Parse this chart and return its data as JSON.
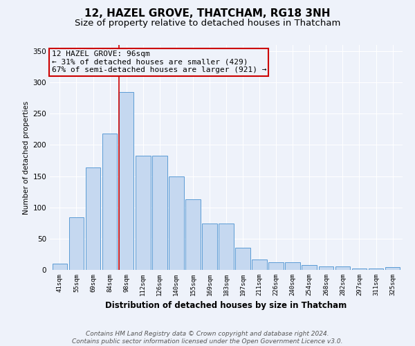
{
  "title": "12, HAZEL GROVE, THATCHAM, RG18 3NH",
  "subtitle": "Size of property relative to detached houses in Thatcham",
  "xlabel": "Distribution of detached houses by size in Thatcham",
  "ylabel": "Number of detached properties",
  "categories": [
    "41sqm",
    "55sqm",
    "69sqm",
    "84sqm",
    "98sqm",
    "112sqm",
    "126sqm",
    "140sqm",
    "155sqm",
    "169sqm",
    "183sqm",
    "197sqm",
    "211sqm",
    "226sqm",
    "240sqm",
    "254sqm",
    "268sqm",
    "282sqm",
    "297sqm",
    "311sqm",
    "325sqm"
  ],
  "values": [
    10,
    84,
    164,
    218,
    285,
    183,
    183,
    149,
    113,
    74,
    74,
    35,
    17,
    12,
    12,
    8,
    5,
    5,
    2,
    2,
    4
  ],
  "bar_color": "#c5d8f0",
  "bar_edge_color": "#5b9bd5",
  "property_line_color": "#cc0000",
  "annotation_text": "12 HAZEL GROVE: 96sqm\n← 31% of detached houses are smaller (429)\n67% of semi-detached houses are larger (921) →",
  "annotation_box_color": "#cc0000",
  "ylim": [
    0,
    360
  ],
  "yticks": [
    0,
    50,
    100,
    150,
    200,
    250,
    300,
    350
  ],
  "footer": "Contains HM Land Registry data © Crown copyright and database right 2024.\nContains public sector information licensed under the Open Government Licence v3.0.",
  "background_color": "#eef2fa",
  "grid_color": "#ffffff",
  "title_fontsize": 11,
  "subtitle_fontsize": 9.5,
  "annotation_fontsize": 8,
  "footer_fontsize": 6.5
}
